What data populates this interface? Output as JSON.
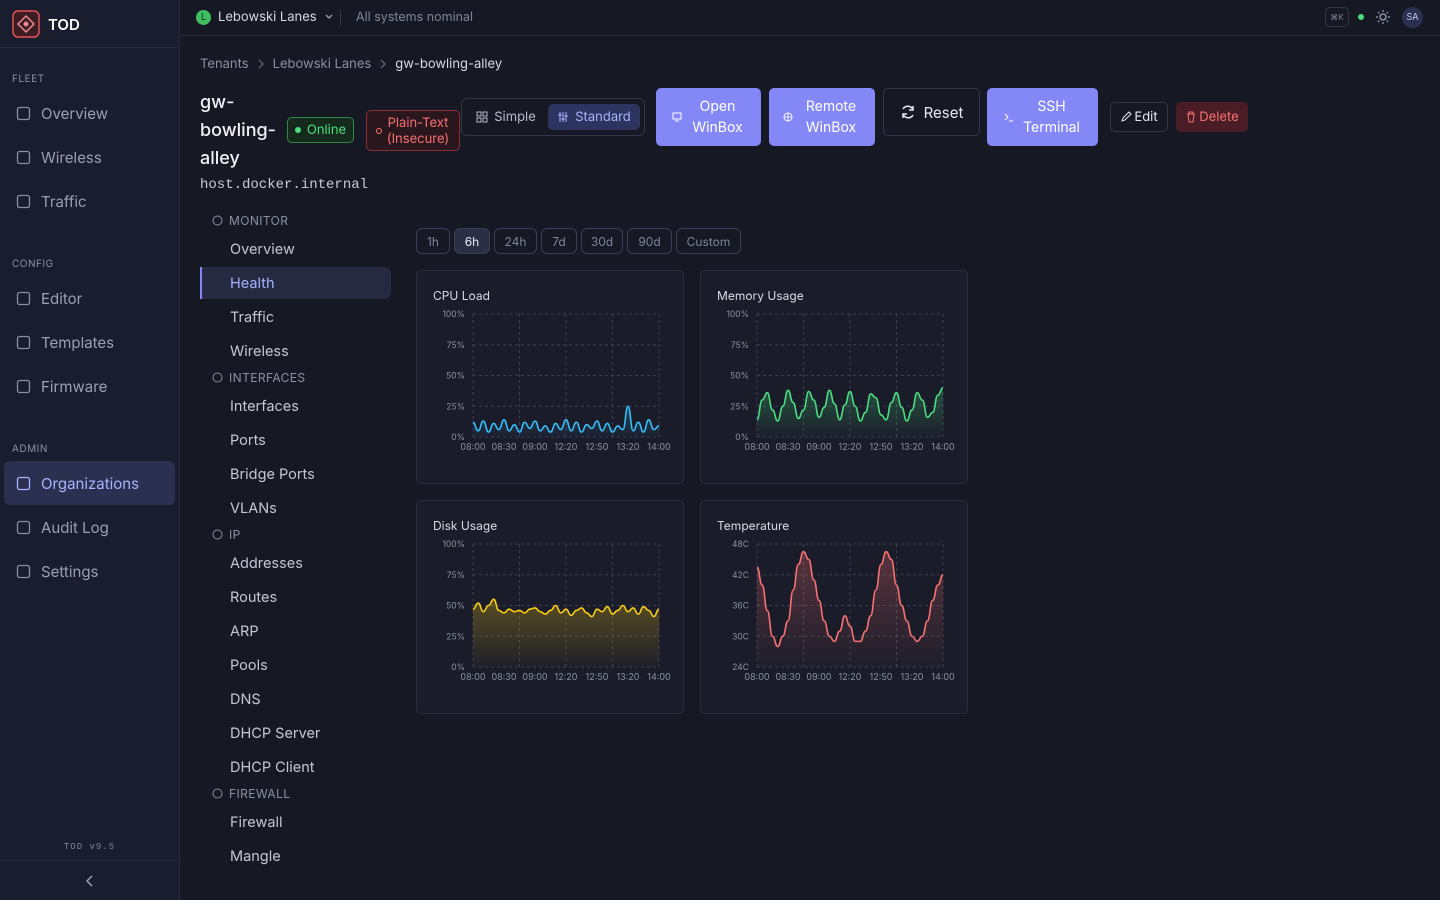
{
  "sidebar": {
    "brand": "TOD",
    "sections": [
      {
        "label": "FLEET",
        "items": [
          "Overview",
          "Wireless",
          "Traffic"
        ]
      },
      {
        "label": "CONFIG",
        "items": [
          "Editor",
          "Templates",
          "Firmware"
        ]
      },
      {
        "label": "ADMIN",
        "items": [
          "Organizations",
          "Audit Log",
          "Settings"
        ]
      }
    ],
    "version": "TOD v9.5"
  },
  "topbar": {
    "tenant_initial": "L",
    "tenant": "Lebowski Lanes",
    "status": "All systems nominal",
    "shortcut": "⌘K",
    "avatar": "SA"
  },
  "breadcrumb": [
    "Tenants",
    "Lebowski Lanes",
    "gw-bowling-alley"
  ],
  "device": {
    "name": "gw-bowling-alley",
    "status": "Online",
    "warning": "Plain-Text (Insecure)",
    "host": "host.docker.internal"
  },
  "view_modes": [
    "Simple",
    "Standard"
  ],
  "actions": [
    "Open WinBox",
    "Remote WinBox",
    "Reset",
    "SSH Terminal",
    "Edit",
    "Delete"
  ],
  "subnav": [
    {
      "label": "MONITOR",
      "items": [
        "Overview",
        "Health",
        "Traffic",
        "Wireless"
      ]
    },
    {
      "label": "INTERFACES",
      "items": [
        "Interfaces",
        "Ports",
        "Bridge Ports",
        "VLANs"
      ]
    },
    {
      "label": "IP",
      "items": [
        "Addresses",
        "Routes",
        "ARP",
        "Pools",
        "DNS",
        "DHCP Server",
        "DHCP Client"
      ]
    },
    {
      "label": "FIREWALL",
      "items": [
        "Firewall",
        "Mangle"
      ]
    }
  ],
  "time_ranges": [
    "1h",
    "6h",
    "24h",
    "7d",
    "30d",
    "90d",
    "Custom"
  ],
  "chart_data": [
    {
      "type": "line",
      "title": "CPU Load",
      "color": "#38bdf8",
      "categories": [
        "08:00",
        null,
        null,
        null,
        null,
        null,
        "08:30",
        null,
        null,
        null,
        null,
        null,
        "09:00",
        null,
        null,
        null,
        null,
        null,
        "12:20",
        null,
        null,
        null,
        null,
        null,
        "12:50",
        null,
        null,
        null,
        null,
        null,
        "13:20",
        null,
        null,
        null,
        null,
        null,
        "14:00"
      ],
      "values": [
        12,
        5,
        13,
        4,
        11,
        6,
        14,
        5,
        10,
        4,
        12,
        7,
        13,
        5,
        9,
        4,
        11,
        6,
        14,
        5,
        12,
        4,
        10,
        7,
        13,
        5,
        11,
        4,
        9,
        6,
        25,
        5,
        12,
        4,
        14,
        6,
        9
      ],
      "ylim": [
        0,
        100
      ],
      "yticks": [
        {
          "value": 0,
          "label": "0%"
        },
        {
          "value": 25,
          "label": "25%"
        },
        {
          "value": 50,
          "label": "50%"
        },
        {
          "value": 75,
          "label": "75%"
        },
        {
          "value": 100,
          "label": "100%"
        }
      ],
      "grid": true
    },
    {
      "type": "line",
      "title": "Memory Usage",
      "color": "#4ade80",
      "categories": [
        "08:00",
        null,
        null,
        null,
        null,
        null,
        "08:30",
        null,
        null,
        null,
        null,
        null,
        "09:00",
        null,
        null,
        null,
        null,
        null,
        "12:20",
        null,
        null,
        null,
        null,
        null,
        "12:50",
        null,
        null,
        null,
        null,
        null,
        "13:20",
        null,
        null,
        null,
        null,
        null,
        "14:00"
      ],
      "values": [
        14,
        30,
        36,
        22,
        13,
        25,
        38,
        28,
        15,
        22,
        37,
        30,
        16,
        24,
        38,
        27,
        14,
        26,
        37,
        25,
        13,
        20,
        35,
        32,
        18,
        14,
        28,
        36,
        24,
        13,
        22,
        36,
        30,
        16,
        20,
        34,
        40
      ],
      "ylim": [
        0,
        100
      ],
      "yticks": [
        {
          "value": 0,
          "label": "0%"
        },
        {
          "value": 25,
          "label": "25%"
        },
        {
          "value": 50,
          "label": "50%"
        },
        {
          "value": 75,
          "label": "75%"
        },
        {
          "value": 100,
          "label": "100%"
        }
      ],
      "grid": true
    },
    {
      "type": "line",
      "title": "Disk Usage",
      "color": "#facc15",
      "categories": [
        "08:00",
        null,
        null,
        null,
        null,
        null,
        "08:30",
        null,
        null,
        null,
        null,
        null,
        "09:00",
        null,
        null,
        null,
        null,
        null,
        "12:20",
        null,
        null,
        null,
        null,
        null,
        "12:50",
        null,
        null,
        null,
        null,
        null,
        "13:20",
        null,
        null,
        null,
        null,
        null,
        "14:00"
      ],
      "values": [
        47,
        52,
        45,
        50,
        55,
        46,
        44,
        47,
        45,
        46,
        44,
        47,
        48,
        45,
        43,
        46,
        50,
        44,
        47,
        42,
        46,
        48,
        44,
        41,
        47,
        45,
        49,
        43,
        46,
        50,
        45,
        48,
        43,
        49,
        46,
        41,
        47
      ],
      "ylim": [
        0,
        100
      ],
      "yticks": [
        {
          "value": 0,
          "label": "0%"
        },
        {
          "value": 25,
          "label": "25%"
        },
        {
          "value": 50,
          "label": "50%"
        },
        {
          "value": 75,
          "label": "75%"
        },
        {
          "value": 100,
          "label": "100%"
        }
      ],
      "grid": true
    },
    {
      "type": "line",
      "title": "Temperature",
      "color": "#f87171",
      "categories": [
        "08:00",
        null,
        null,
        null,
        null,
        null,
        "08:30",
        null,
        null,
        null,
        null,
        null,
        "09:00",
        null,
        null,
        null,
        null,
        null,
        "12:20",
        null,
        null,
        null,
        null,
        null,
        "12:50",
        null,
        null,
        null,
        null,
        null,
        "13:20",
        null,
        null,
        null,
        null,
        null,
        "14:00"
      ],
      "values": [
        43.5,
        40,
        35,
        30,
        28,
        30,
        33,
        39,
        44,
        46.5,
        45,
        41,
        37,
        33,
        30,
        29,
        31,
        34,
        32,
        29,
        29,
        31,
        34,
        39,
        44,
        46.5,
        45,
        40,
        36,
        33,
        30,
        29,
        30,
        33,
        37,
        40,
        42
      ],
      "ylim": [
        24,
        48
      ],
      "yticks": [
        {
          "value": 24,
          "label": "24C"
        },
        {
          "value": 30,
          "label": "30C"
        },
        {
          "value": 36,
          "label": "36C"
        },
        {
          "value": 42,
          "label": "42C"
        },
        {
          "value": 48,
          "label": "48C"
        }
      ],
      "grid": true
    }
  ]
}
